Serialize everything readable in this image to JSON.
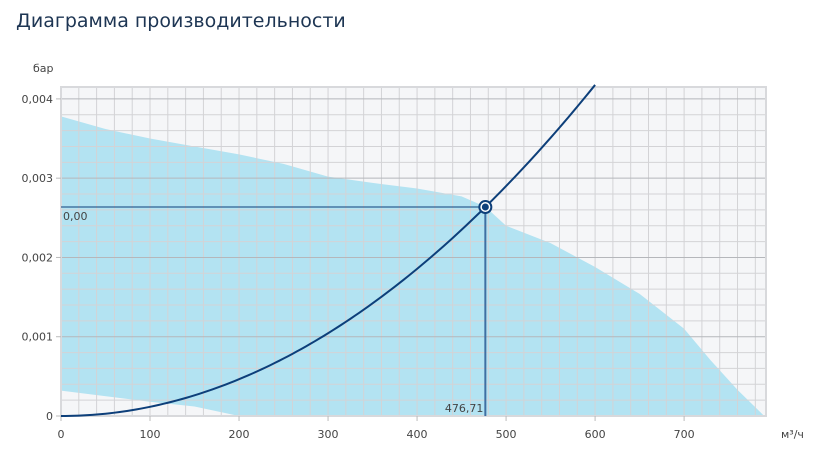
{
  "title": "Диаграмма производительности",
  "chart_data": {
    "type": "area",
    "title": "Диаграмма производительности",
    "xlabel": "м³/ч",
    "ylabel": "бар",
    "xlim": [
      0,
      792
    ],
    "ylim": [
      0,
      0.00415
    ],
    "x_ticks": [
      0,
      100,
      200,
      300,
      400,
      500,
      600,
      700
    ],
    "x_tick_labels": [
      "0",
      "100",
      "200",
      "300",
      "400",
      "500",
      "600",
      "700"
    ],
    "y_ticks": [
      0,
      0.001,
      0.002,
      0.003,
      0.004
    ],
    "y_tick_labels": [
      "0",
      "0,001",
      "0,002",
      "0,003",
      "0,004"
    ],
    "grid": true,
    "operating_range": {
      "upper": [
        [
          0,
          0.00378
        ],
        [
          50,
          0.00362
        ],
        [
          100,
          0.0035
        ],
        [
          150,
          0.0034
        ],
        [
          200,
          0.0033
        ],
        [
          250,
          0.00318
        ],
        [
          300,
          0.00302
        ],
        [
          350,
          0.00294
        ],
        [
          400,
          0.00287
        ],
        [
          450,
          0.00277
        ],
        [
          476.71,
          0.00264
        ],
        [
          500,
          0.0024
        ],
        [
          550,
          0.00218
        ],
        [
          600,
          0.00188
        ],
        [
          650,
          0.00154
        ],
        [
          700,
          0.0011
        ],
        [
          730,
          0.0007
        ],
        [
          760,
          0.00033
        ],
        [
          790,
          0
        ]
      ],
      "lower": [
        [
          0,
          0.00032
        ],
        [
          100,
          0.00018
        ],
        [
          150,
          0.00012
        ],
        [
          200,
          0
        ]
      ]
    },
    "system_curve": {
      "coefficient": 1.16e-08,
      "x_max": 600
    },
    "operating_point": {
      "x": 476.71,
      "y": 0.002636,
      "x_label": "476,71",
      "y_label": "0,00"
    },
    "colors": {
      "area": "#b3e3f2",
      "curve": "#0d3f7a",
      "background": "#f5f6f8",
      "grid": "#d3d3d6"
    }
  }
}
